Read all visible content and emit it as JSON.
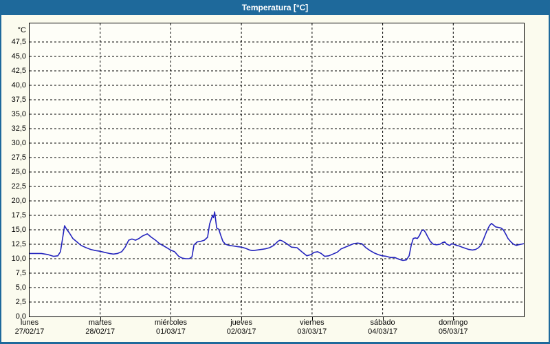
{
  "window": {
    "title": "Temperatura [°C]"
  },
  "colors": {
    "frame_blue": "#1e699b",
    "background": "#fbfbee",
    "plot_background": "#fefef8",
    "grid": "#000000",
    "line": "#2323bd",
    "text": "#000000",
    "title_text": "#ffffff"
  },
  "chart_data": {
    "type": "line",
    "title": "Temperatura [°C]",
    "y_unit_label": "°C",
    "ylabel": "Temperatura",
    "y_min": 0,
    "y_max": 50.7,
    "y_tick_step": 2.5,
    "grid": "dashed",
    "legend_position": "none",
    "y_ticks": [
      {
        "value": 47.5,
        "label": "47,5"
      },
      {
        "value": 45.0,
        "label": "45,0"
      },
      {
        "value": 42.5,
        "label": "42,5"
      },
      {
        "value": 40.0,
        "label": "40,0"
      },
      {
        "value": 37.5,
        "label": "37,5"
      },
      {
        "value": 35.0,
        "label": "35,0"
      },
      {
        "value": 32.5,
        "label": "32,5"
      },
      {
        "value": 30.0,
        "label": "30,0"
      },
      {
        "value": 27.5,
        "label": "27,5"
      },
      {
        "value": 25.0,
        "label": "25,0"
      },
      {
        "value": 22.5,
        "label": "22,5"
      },
      {
        "value": 20.0,
        "label": "20,0"
      },
      {
        "value": 17.5,
        "label": "17,5"
      },
      {
        "value": 15.0,
        "label": "15,0"
      },
      {
        "value": 12.5,
        "label": "12,5"
      },
      {
        "value": 10.0,
        "label": "10,0"
      },
      {
        "value": 7.5,
        "label": "7,5"
      },
      {
        "value": 5.0,
        "label": "5,0"
      },
      {
        "value": 2.5,
        "label": "2,5"
      },
      {
        "value": 0.0,
        "label": "0,0"
      }
    ],
    "x_days": [
      {
        "name": "lunes",
        "date": "27/02/17"
      },
      {
        "name": "martes",
        "date": "28/02/17"
      },
      {
        "name": "miércoles",
        "date": "01/03/17"
      },
      {
        "name": "jueves",
        "date": "02/03/17"
      },
      {
        "name": "viernes",
        "date": "03/03/17"
      },
      {
        "name": "sábado",
        "date": "04/03/17"
      },
      {
        "name": "domingo",
        "date": "05/03/17"
      }
    ],
    "x_total_hours": 168,
    "series": [
      {
        "name": "Temperatura",
        "color": "#2323bd",
        "points_hours_degC": [
          [
            0,
            10.9
          ],
          [
            2.1,
            10.9
          ],
          [
            4,
            10.9
          ],
          [
            6.3,
            10.7
          ],
          [
            8.2,
            10.4
          ],
          [
            9.6,
            10.5
          ],
          [
            10.5,
            11.2
          ],
          [
            11.2,
            13.4
          ],
          [
            11.9,
            15.7
          ],
          [
            12.6,
            15.1
          ],
          [
            13.6,
            14.4
          ],
          [
            14.7,
            13.5
          ],
          [
            16.1,
            12.9
          ],
          [
            17.5,
            12.3
          ],
          [
            19.2,
            11.9
          ],
          [
            20.8,
            11.6
          ],
          [
            22.4,
            11.4
          ],
          [
            23.8,
            11.3
          ],
          [
            25.5,
            11.1
          ],
          [
            27.1,
            10.9
          ],
          [
            28.5,
            10.8
          ],
          [
            29.9,
            10.9
          ],
          [
            31.3,
            11.2
          ],
          [
            32.5,
            12.0
          ],
          [
            33.7,
            13.2
          ],
          [
            34.8,
            13.4
          ],
          [
            36,
            13.2
          ],
          [
            37.2,
            13.5
          ],
          [
            38.3,
            13.9
          ],
          [
            40,
            14.3
          ],
          [
            41.4,
            13.7
          ],
          [
            42.8,
            13.2
          ],
          [
            44.2,
            12.6
          ],
          [
            45.6,
            12.2
          ],
          [
            47,
            11.8
          ],
          [
            47.9,
            11.5
          ],
          [
            49.3,
            11.2
          ],
          [
            50.7,
            10.4
          ],
          [
            51.9,
            10.1
          ],
          [
            53.1,
            10.0
          ],
          [
            54.2,
            10.0
          ],
          [
            55.2,
            10.3
          ],
          [
            55.9,
            12.4
          ],
          [
            57,
            12.9
          ],
          [
            58.2,
            13.0
          ],
          [
            59.4,
            13.2
          ],
          [
            60.5,
            13.7
          ],
          [
            61.2,
            16.0
          ],
          [
            62.2,
            17.5
          ],
          [
            62.5,
            17.1
          ],
          [
            62.9,
            18.1
          ],
          [
            63.6,
            15.3
          ],
          [
            64.3,
            15.1
          ],
          [
            65,
            14.0
          ],
          [
            65.7,
            13.0
          ],
          [
            66.6,
            12.5
          ],
          [
            67.8,
            12.3
          ],
          [
            69.2,
            12.2
          ],
          [
            70.6,
            12.1
          ],
          [
            72,
            12.0
          ],
          [
            73.4,
            11.8
          ],
          [
            74.8,
            11.5
          ],
          [
            75.9,
            11.4
          ],
          [
            77.3,
            11.5
          ],
          [
            78.7,
            11.6
          ],
          [
            80.1,
            11.7
          ],
          [
            81.6,
            11.9
          ],
          [
            83,
            12.3
          ],
          [
            84.4,
            13.0
          ],
          [
            85.1,
            13.2
          ],
          [
            85.8,
            13.1
          ],
          [
            87.4,
            12.6
          ],
          [
            89,
            12.0
          ],
          [
            90.9,
            11.9
          ],
          [
            92.5,
            11.2
          ],
          [
            94.2,
            10.5
          ],
          [
            95.6,
            10.7
          ],
          [
            96.7,
            11.1
          ],
          [
            97.9,
            11.2
          ],
          [
            99.1,
            10.9
          ],
          [
            100.3,
            10.4
          ],
          [
            101.7,
            10.5
          ],
          [
            103.1,
            10.8
          ],
          [
            104.5,
            11.1
          ],
          [
            105.9,
            11.7
          ],
          [
            107.3,
            12.0
          ],
          [
            108.7,
            12.3
          ],
          [
            110.1,
            12.6
          ],
          [
            111.5,
            12.7
          ],
          [
            112.9,
            12.6
          ],
          [
            114.3,
            11.9
          ],
          [
            115.7,
            11.4
          ],
          [
            117.1,
            11.0
          ],
          [
            118.5,
            10.7
          ],
          [
            119.9,
            10.5
          ],
          [
            121.3,
            10.4
          ],
          [
            122.7,
            10.2
          ],
          [
            124.1,
            10.2
          ],
          [
            125.5,
            9.9
          ],
          [
            126.9,
            9.7
          ],
          [
            128.1,
            9.8
          ],
          [
            129,
            10.5
          ],
          [
            129.7,
            12.3
          ],
          [
            130.4,
            13.5
          ],
          [
            131.1,
            13.6
          ],
          [
            131.8,
            13.5
          ],
          [
            132.5,
            14.0
          ],
          [
            133.2,
            14.8
          ],
          [
            133.9,
            15.0
          ],
          [
            134.6,
            14.5
          ],
          [
            135.3,
            13.8
          ],
          [
            136.2,
            13.0
          ],
          [
            137.2,
            12.5
          ],
          [
            138.3,
            12.4
          ],
          [
            139.5,
            12.5
          ],
          [
            140.4,
            12.8
          ],
          [
            141.1,
            12.9
          ],
          [
            141.8,
            12.5
          ],
          [
            142.8,
            12.3
          ],
          [
            143.5,
            12.6
          ],
          [
            144.2,
            12.5
          ],
          [
            145.1,
            12.3
          ],
          [
            146,
            12.2
          ],
          [
            147,
            12.0
          ],
          [
            148.1,
            11.8
          ],
          [
            149.3,
            11.6
          ],
          [
            150.5,
            11.5
          ],
          [
            151.6,
            11.6
          ],
          [
            152.6,
            11.9
          ],
          [
            153.5,
            12.4
          ],
          [
            154.4,
            13.5
          ],
          [
            155.4,
            14.8
          ],
          [
            156.3,
            15.7
          ],
          [
            157,
            16.1
          ],
          [
            157.7,
            15.8
          ],
          [
            158.4,
            15.5
          ],
          [
            159.4,
            15.4
          ],
          [
            160.3,
            15.3
          ],
          [
            161,
            15.0
          ],
          [
            161.9,
            14.2
          ],
          [
            162.6,
            13.5
          ],
          [
            163.6,
            12.9
          ],
          [
            164.5,
            12.5
          ],
          [
            165.4,
            12.3
          ],
          [
            166.1,
            12.4
          ],
          [
            167.1,
            12.5
          ],
          [
            168,
            12.6
          ]
        ]
      }
    ]
  }
}
